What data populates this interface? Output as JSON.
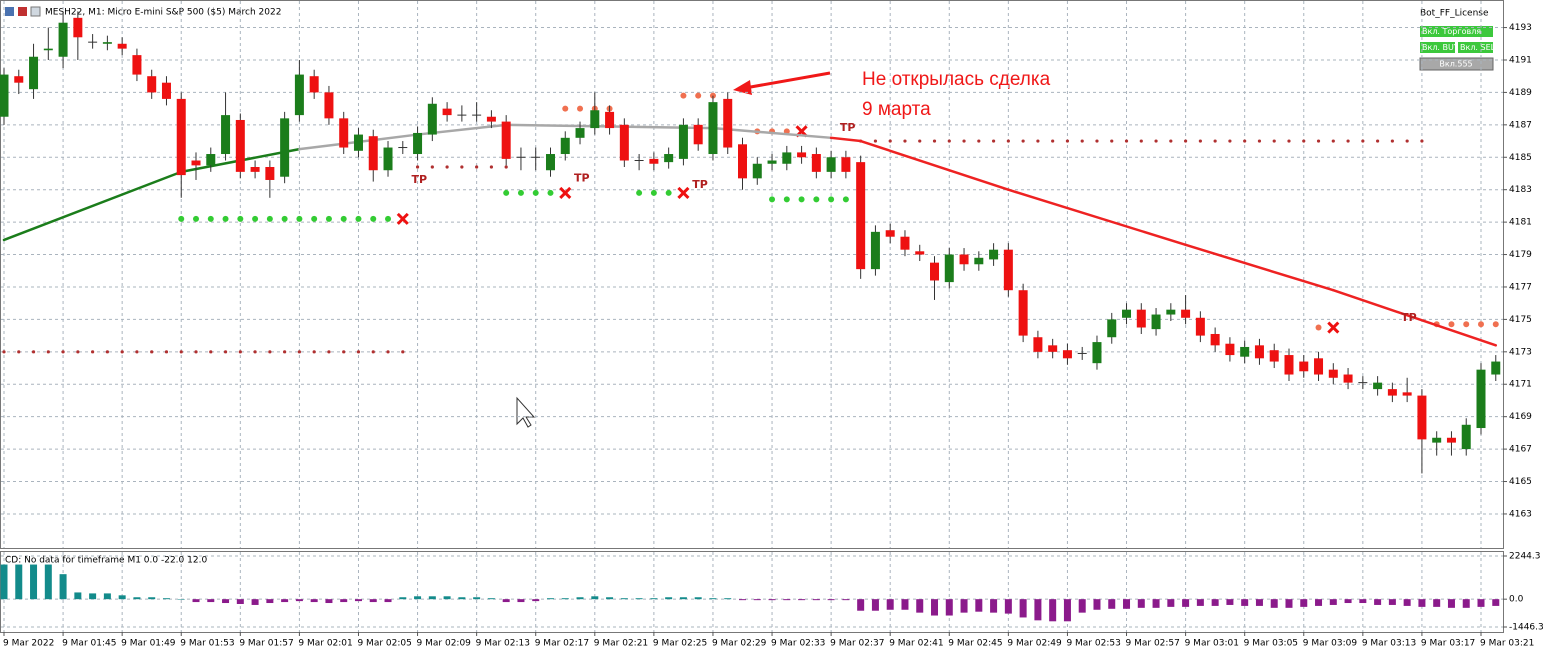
{
  "chart_data": {
    "type": "candlestick",
    "title": "MESH22, M1:  Micro E-mini S&P 500 ($5) March 2022",
    "license": "Bot_FF_License",
    "buttons": [
      "Вкл. Торговля",
      "Вкл. BUY",
      "Вкл. SELL",
      "Вкл.555"
    ],
    "annotation": [
      "Не открылась сделка",
      "9 марта"
    ],
    "up_color": "#1b7d1b",
    "down_color": "#ee1111",
    "categories": [
      "9 Mar 2022",
      null,
      null,
      null,
      "9 Mar 01:45",
      null,
      null,
      null,
      "9 Mar 01:49",
      null,
      null,
      null,
      "9 Mar 01:53",
      null,
      null,
      null,
      "9 Mar 01:57",
      null,
      null,
      null,
      "9 Mar 02:01",
      null,
      null,
      null,
      "9 Mar 02:05",
      null,
      null,
      null,
      "9 Mar 02:09",
      null,
      null,
      null,
      "9 Mar 02:13",
      null,
      null,
      null,
      "9 Mar 02:17",
      null,
      null,
      null,
      "9 Mar 02:21",
      null,
      null,
      null,
      "9 Mar 02:25",
      null,
      null,
      null,
      "9 Mar 02:29",
      null,
      null,
      null,
      "9 Mar 02:33",
      null,
      null,
      null,
      "9 Mar 02:37",
      null,
      null,
      null,
      "9 Mar 02:41",
      null,
      null,
      null,
      "9 Mar 02:45",
      null,
      null,
      null,
      "9 Mar 02:49",
      null,
      null,
      null,
      "9 Mar 02:53",
      null,
      null,
      null,
      "9 Mar 02:57",
      null,
      null,
      null,
      "9 Mar 03:01",
      null,
      null,
      null,
      "9 Mar 03:05",
      null,
      null,
      null,
      "9 Mar 03:09",
      null,
      null,
      null,
      "9 Mar 03:13",
      null,
      null,
      null,
      "9 Mar 03:17",
      null,
      null,
      null,
      "9 Mar 03:21",
      null
    ],
    "open": [
      4187.5,
      4190,
      4189.2,
      4191.6,
      4191.2,
      4193.6,
      4192.1,
      4192,
      4192,
      4191.3,
      4190,
      4189.6,
      4188.6,
      4184.8,
      4184.5,
      4185.2,
      4187.3,
      4184.4,
      4184.4,
      4183.8,
      4187.6,
      4190,
      4189,
      4187.4,
      4185.4,
      4186.3,
      4184.2,
      4185.6,
      4185.2,
      4186.4,
      4188,
      4187.6,
      4187.6,
      4187.5,
      4187.2,
      4185,
      4185,
      4184.2,
      4185.2,
      4186.2,
      4186.8,
      4187.8,
      4187,
      4184.8,
      4184.9,
      4184.7,
      4184.9,
      4187,
      4185.2,
      4188.6,
      4185.8,
      4183.7,
      4184.6,
      4184.6,
      4185.3,
      4185.2,
      4184.1,
      4185,
      4184.7,
      4178.1,
      4180.5,
      4180.1,
      4179.2,
      4178.5,
      4177.3,
      4179,
      4178.4,
      4178.7,
      4179.3,
      4176.8,
      4173.9,
      4173.4,
      4173.1,
      4172.9,
      4172.3,
      4173.9,
      4175.1,
      4175.6,
      4174.4,
      4175.3,
      4175.6,
      4175.1,
      4174.1,
      4173.5,
      4172.7,
      4173.4,
      4173.1,
      4172.8,
      4172.4,
      4172.6,
      4171.9,
      4171.6,
      4171.1,
      4170.7,
      4170.7,
      4170.5,
      4170.3,
      4167.4,
      4167.7,
      4167,
      4168.3,
      4171.6
    ],
    "high": [
      4190.5,
      4190.4,
      4192,
      4193,
      4194,
      4194,
      4192.6,
      4192.5,
      4192.4,
      4191.7,
      4190.4,
      4190,
      4189,
      4185.3,
      4185.6,
      4189,
      4187.7,
      4184.8,
      4184.8,
      4187.8,
      4191,
      4190.4,
      4189.4,
      4187.8,
      4186.8,
      4186.7,
      4186,
      4186,
      4186.9,
      4188.7,
      4188.4,
      4188.2,
      4188.4,
      4187.9,
      4187.6,
      4185.6,
      4185.6,
      4185.6,
      4186.6,
      4187.2,
      4189,
      4188.2,
      4187.4,
      4185.2,
      4185.3,
      4185.6,
      4187.4,
      4187.4,
      4188.8,
      4189,
      4186.2,
      4185,
      4185.2,
      4185.7,
      4185.7,
      4185.6,
      4185.4,
      4185.4,
      4185.1,
      4180.8,
      4180.9,
      4180.5,
      4179.6,
      4178.9,
      4179.4,
      4179.4,
      4179.2,
      4179.7,
      4179.7,
      4177.2,
      4174.3,
      4173.8,
      4173.5,
      4173.3,
      4174,
      4175.4,
      4176,
      4176,
      4175.7,
      4176,
      4176.5,
      4175.5,
      4174.5,
      4173.9,
      4173.7,
      4173.8,
      4173.5,
      4173.2,
      4172.8,
      4173,
      4172.3,
      4172,
      4171.5,
      4171.5,
      4171.1,
      4171.4,
      4170.7,
      4168.1,
      4168.1,
      4168.9,
      4172.3,
      4172.8
    ],
    "low": [
      4187,
      4188.9,
      4188.6,
      4191,
      4190.5,
      4191,
      4191.7,
      4191.6,
      4191.3,
      4189.7,
      4188.6,
      4188.2,
      4182.5,
      4183.6,
      4184.1,
      4184.8,
      4183.7,
      4183.7,
      4182.5,
      4183.4,
      4187.2,
      4188.6,
      4187,
      4185.2,
      4185,
      4183.5,
      4183.8,
      4185.2,
      4184.8,
      4186,
      4187.2,
      4187.2,
      4187.2,
      4186.8,
      4184.5,
      4184.2,
      4184.2,
      4183.8,
      4184.8,
      4185.8,
      4186.4,
      4186.4,
      4184.4,
      4184.2,
      4184.2,
      4184.3,
      4184.5,
      4185.4,
      4184.8,
      4185.2,
      4183,
      4183.3,
      4184.2,
      4184.2,
      4184.6,
      4183.7,
      4183.7,
      4183.7,
      4177.5,
      4177.7,
      4179.7,
      4178.9,
      4178.6,
      4176.2,
      4176.9,
      4178,
      4178,
      4178.3,
      4176.4,
      4173.6,
      4172.6,
      4172.6,
      4172.2,
      4172.5,
      4171.9,
      4173.5,
      4174.7,
      4174.1,
      4174,
      4174.9,
      4174.7,
      4173.6,
      4173,
      4172.4,
      4172.3,
      4172.2,
      4172,
      4171.2,
      4171.4,
      4171.2,
      4171,
      4170.7,
      4170.7,
      4170.3,
      4169.9,
      4169.9,
      4165.5,
      4166.6,
      4166.6,
      4166.6,
      4167.9,
      4171.2
    ],
    "close": [
      4190.1,
      4189.6,
      4191.2,
      4191.7,
      4193.3,
      4192.4,
      4192.1,
      4192.1,
      4191.7,
      4190.1,
      4189,
      4188.6,
      4183.9,
      4184.5,
      4185.2,
      4187.6,
      4184.1,
      4184.1,
      4183.6,
      4187.4,
      4190.1,
      4189,
      4187.4,
      4185.6,
      4186.4,
      4184.2,
      4185.6,
      4185.6,
      4186.5,
      4188.3,
      4187.6,
      4187.6,
      4187.6,
      4187.2,
      4184.9,
      4185,
      4185,
      4185.2,
      4186.2,
      4186.8,
      4187.9,
      4186.8,
      4184.8,
      4184.8,
      4184.6,
      4185.2,
      4187,
      4185.8,
      4188.4,
      4185.6,
      4183.7,
      4184.6,
      4184.8,
      4185.3,
      4185,
      4184.1,
      4185,
      4184.1,
      4178.1,
      4180.4,
      4180.1,
      4179.3,
      4179,
      4177.4,
      4179,
      4178.4,
      4178.8,
      4179.3,
      4176.8,
      4174,
      4173,
      4173,
      4172.6,
      4172.9,
      4173.6,
      4175,
      4175.6,
      4174.5,
      4175.3,
      4175.6,
      4175.1,
      4174,
      4173.4,
      4172.8,
      4173.3,
      4172.6,
      4172.4,
      4171.6,
      4171.8,
      4171.6,
      4171.4,
      4171.1,
      4171.1,
      4171.1,
      4170.3,
      4170.3,
      4167.6,
      4167.7,
      4167.4,
      4168.5,
      4171.9,
      4172.4
    ],
    "ylim": [
      4160.9,
      4194.7
    ],
    "yticks": [
      4163,
      4165,
      4167,
      4169,
      4171,
      4173,
      4175,
      4177,
      4179,
      4181,
      4183,
      4185,
      4187,
      4189,
      4191,
      4193
    ],
    "grid": true,
    "ma": {
      "x": [
        0,
        12,
        20,
        28,
        34,
        48,
        56,
        58,
        68,
        80,
        90,
        101
      ],
      "values": [
        4179.9,
        4184.1,
        4185.5,
        4186.4,
        4187,
        4186.8,
        4186.2,
        4186,
        4183,
        4179.6,
        4176.8,
        4173.4
      ],
      "colors": [
        "#1b7d1b",
        "#1b7d1b",
        "#a8a8a8",
        "#a8a8a8",
        "#a8a8a8",
        "#a8a8a8",
        "#ee2222",
        "#ee2222",
        "#ee2222",
        "#ee2222",
        "#ee2222"
      ]
    },
    "levels": [
      {
        "price": 4181.2,
        "from": 12,
        "to": 26,
        "color": "#33cc33",
        "cross": true
      },
      {
        "price": 4173,
        "from": 0,
        "to": 27,
        "color": "#b03030",
        "cross": false
      },
      {
        "price": 4184.4,
        "from": 28,
        "to": 34,
        "color": "#b03030",
        "cross": false
      },
      {
        "price": 4182.8,
        "from": 34,
        "to": 37,
        "color": "#33cc33",
        "cross": true
      },
      {
        "price": 4188,
        "from": 38,
        "to": 41,
        "color": "#f07050",
        "cross": false
      },
      {
        "price": 4182.8,
        "from": 43,
        "to": 45,
        "color": "#33cc33",
        "cross": true
      },
      {
        "price": 4188.8,
        "from": 46,
        "to": 48,
        "color": "#f07050",
        "cross": false
      },
      {
        "price": 4186.6,
        "from": 51,
        "to": 53,
        "color": "#f07050",
        "cross": true
      },
      {
        "price": 4182.4,
        "from": 52,
        "to": 57,
        "color": "#33cc33",
        "cross": false
      },
      {
        "price": 4186,
        "from": 58,
        "to": 96,
        "color": "#b03030",
        "cross": false
      },
      {
        "price": 4174.5,
        "from": 89,
        "to": 89,
        "color": "#f07050",
        "cross": true
      },
      {
        "price": 4174.7,
        "from": 97,
        "to": 101,
        "color": "#f07050",
        "cross": false
      }
    ],
    "tp_labels": [
      {
        "label": "TP",
        "index": 28,
        "price": 4183.6
      },
      {
        "label": "TP",
        "index": 39,
        "price": 4183.7
      },
      {
        "label": "TP",
        "index": 47,
        "price": 4183.3
      },
      {
        "label": "TP",
        "index": 57,
        "price": 4186.8
      },
      {
        "label": "TP",
        "index": 95,
        "price": 4175.1
      }
    ],
    "indicator": {
      "title": "CD: No data for timeframe M1 0.0 -22.0 12.0",
      "pos_color": "#138b8b",
      "neg_color": "#8b1a8b",
      "values": [
        1800,
        1800,
        1800,
        1800,
        1300,
        350,
        300,
        300,
        200,
        100,
        100,
        50,
        0,
        -150,
        -150,
        -200,
        -250,
        -300,
        -200,
        -150,
        -100,
        -150,
        -200,
        -150,
        -100,
        -150,
        -150,
        100,
        150,
        150,
        150,
        100,
        100,
        50,
        -150,
        -150,
        -100,
        50,
        50,
        100,
        150,
        100,
        50,
        50,
        50,
        100,
        100,
        100,
        50,
        50,
        -50,
        -50,
        -50,
        -50,
        -50,
        -50,
        -50,
        -50,
        -600,
        -600,
        -550,
        -550,
        -700,
        -850,
        -850,
        -700,
        -650,
        -700,
        -750,
        -950,
        -1100,
        -1150,
        -1150,
        -700,
        -550,
        -500,
        -500,
        -450,
        -450,
        -400,
        -400,
        -350,
        -350,
        -300,
        -350,
        -350,
        -450,
        -450,
        -400,
        -350,
        -300,
        -200,
        -200,
        -300,
        -300,
        -350,
        -400,
        -400,
        -450,
        -450,
        -400,
        -350
      ],
      "ylim": [
        -1706,
        2504
      ],
      "yticks": [
        -1446.3,
        {
          "value": 0,
          "label": "0.0"
        },
        2244.3
      ]
    }
  }
}
